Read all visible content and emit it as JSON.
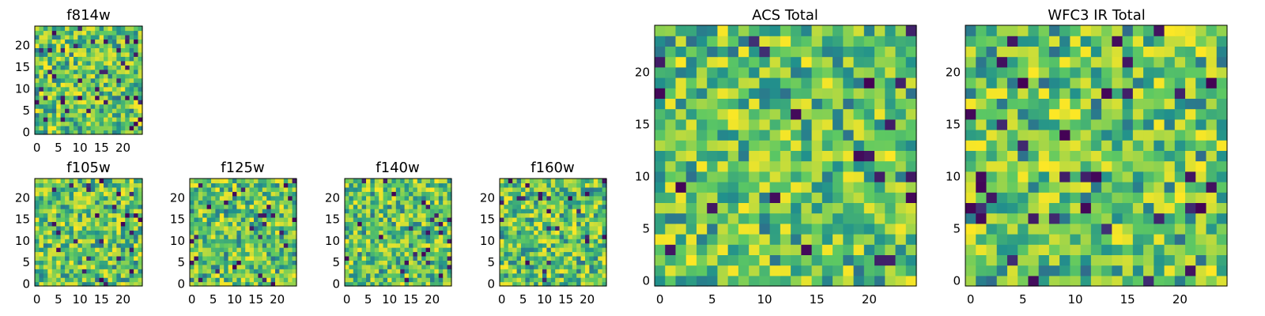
{
  "chart_data": [
    {
      "id": "f814w",
      "type": "heatmap",
      "title": "f814w",
      "grid_size": 25,
      "seed": 814,
      "xticks": [
        0,
        5,
        10,
        15,
        20
      ],
      "yticks": [
        0,
        5,
        10,
        15,
        20
      ],
      "value_range": [
        0,
        1
      ],
      "colormap": "viridis"
    },
    {
      "id": "f105w",
      "type": "heatmap",
      "title": "f105w",
      "grid_size": 25,
      "seed": 105,
      "xticks": [
        0,
        5,
        10,
        15,
        20
      ],
      "yticks": [
        0,
        5,
        10,
        15,
        20
      ],
      "value_range": [
        0,
        1
      ],
      "colormap": "viridis"
    },
    {
      "id": "f125w",
      "type": "heatmap",
      "title": "f125w",
      "grid_size": 25,
      "seed": 125,
      "xticks": [
        0,
        5,
        10,
        15,
        20
      ],
      "yticks": [
        0,
        5,
        10,
        15,
        20
      ],
      "value_range": [
        0,
        1
      ],
      "colormap": "viridis"
    },
    {
      "id": "f140w",
      "type": "heatmap",
      "title": "f140w",
      "grid_size": 25,
      "seed": 140,
      "xticks": [
        0,
        5,
        10,
        15,
        20
      ],
      "yticks": [
        0,
        5,
        10,
        15,
        20
      ],
      "value_range": [
        0,
        1
      ],
      "colormap": "viridis"
    },
    {
      "id": "f160w",
      "type": "heatmap",
      "title": "f160w",
      "grid_size": 25,
      "seed": 160,
      "xticks": [
        0,
        5,
        10,
        15,
        20
      ],
      "yticks": [
        0,
        5,
        10,
        15,
        20
      ],
      "value_range": [
        0,
        1
      ],
      "colormap": "viridis"
    },
    {
      "id": "acs",
      "type": "heatmap",
      "title": "ACS Total",
      "grid_size": 25,
      "seed": 2001,
      "xticks": [
        0,
        5,
        10,
        15,
        20
      ],
      "yticks": [
        0,
        5,
        10,
        15,
        20
      ],
      "value_range": [
        0,
        1
      ],
      "colormap": "viridis"
    },
    {
      "id": "wfc3",
      "type": "heatmap",
      "title": "WFC3 IR Total",
      "grid_size": 25,
      "seed": 3001,
      "xticks": [
        0,
        5,
        10,
        15,
        20
      ],
      "yticks": [
        0,
        5,
        10,
        15,
        20
      ],
      "value_range": [
        0,
        1
      ],
      "colormap": "viridis"
    }
  ],
  "colors": {
    "viridis_dark": "#440154",
    "viridis_blue": "#31688e",
    "viridis_teal": "#21918c",
    "viridis_green": "#5ec962",
    "viridis_yellow": "#fde725"
  }
}
